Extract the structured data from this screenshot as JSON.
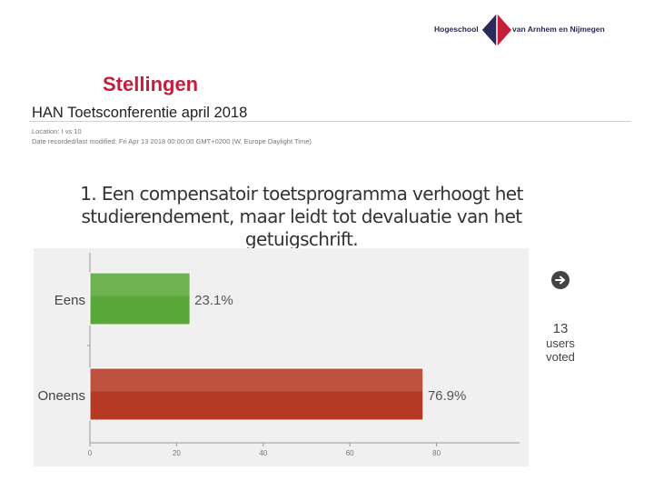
{
  "header": {
    "logo_left": "Hogeschool",
    "logo_right": "van Arnhem en Nijmegen",
    "slide_title": "Stellingen"
  },
  "poll": {
    "conference_title": "HAN Toetsconferentie april 2018",
    "location": "Location: I vs 10",
    "date": "Date recorded/last modified: Fri Apr 13 2018 00:00:00 GMT+0200 (W. Europe Daylight Time)",
    "question_line1": "1. Een compensatoir toetsprogramma verhoogt het",
    "question_line2": "studierendement, maar leidt tot devaluatie van het getuigschrift.",
    "vote_count": "13",
    "vote_label_1": "users",
    "vote_label_2": "voted",
    "next_icon": "arrow-right-circle-icon"
  },
  "colors": {
    "title_red": "#c41e3a",
    "bar_green": "#5aa83a",
    "bar_red": "#b53a26"
  },
  "chart_data": {
    "type": "bar",
    "orientation": "horizontal",
    "categories": [
      "Eens",
      "Oneens"
    ],
    "values": [
      23.1,
      76.9
    ],
    "data_labels": [
      "23.1%",
      "76.9%"
    ],
    "x_ticks": [
      "0",
      "20",
      "40",
      "60",
      "80"
    ],
    "xlim": [
      0,
      100
    ]
  }
}
